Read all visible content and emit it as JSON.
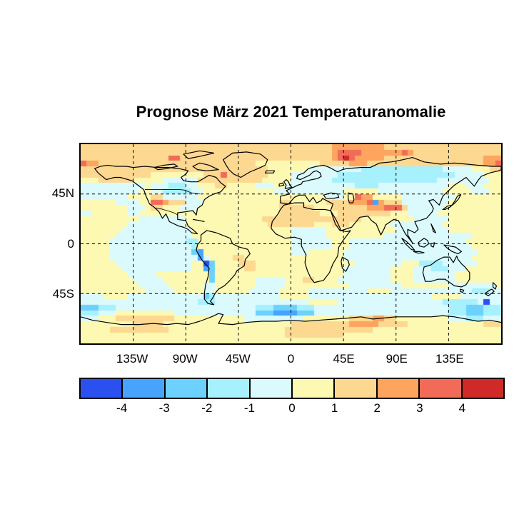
{
  "chart_data": {
    "type": "heatmap",
    "title": "Prognose März 2021 Temperaturanomalie",
    "map": {
      "projection": "equirectangular",
      "lon_range": [
        -180,
        180
      ],
      "lat_range": [
        -90,
        90
      ],
      "grid": "black dashed gridlines every 45 degrees"
    },
    "x_ticks": [
      {
        "label": "135W",
        "lon": -135
      },
      {
        "label": "90W",
        "lon": -90
      },
      {
        "label": "45W",
        "lon": -45
      },
      {
        "label": "0",
        "lon": 0
      },
      {
        "label": "45E",
        "lon": 45
      },
      {
        "label": "90E",
        "lon": 90
      },
      {
        "label": "135E",
        "lon": 135
      }
    ],
    "y_ticks": [
      {
        "label": "45N",
        "lat": 45
      },
      {
        "label": "0",
        "lat": 0
      },
      {
        "label": "45S",
        "lat": -45
      }
    ],
    "colorbar": {
      "boundaries": [
        -4,
        -3,
        -2,
        -1,
        0,
        1,
        2,
        3,
        4
      ],
      "tick_labels": [
        "-4",
        "-3",
        "-2",
        "-1",
        "0",
        "1",
        "2",
        "3",
        "4"
      ],
      "colors": [
        "#2a51f0",
        "#46a3fe",
        "#6dd1fd",
        "#a7f0fd",
        "#dafafd",
        "#fdf9b3",
        "#fdd890",
        "#fda45f",
        "#f26a58",
        "#d02a28"
      ],
      "segment_meaning": "anomaly bins: <-4, -4..-3, -3..-2, -2..-1, -1..0, 0..1, 1..2, 2..3, 3..4, >4"
    },
    "features": [
      "cold (blue) band across Siberia ~50-70N",
      "cool tongue in eastern tropical Pacific along South America (La Niña pattern)",
      "strong cold spots (<-3) along the Andes and deep cold patch in South Atlantic near 60S",
      "warm Arctic with red hot spots (>3) north of western Siberia and in Canadian Arctic",
      "warm spots (>3) in southwest USA, Caucasus/Central Asia and Himalaya region",
      "cool band across southern Canada / northern USA and over Europe",
      "warm patch on East Antarctic coast near 40-70E; mostly mild (0..2) elsewhere"
    ],
    "raster": {
      "rows": 36,
      "cols": 72,
      "cell_degrees": 5,
      "legend": "each digit = colorbar segment index 0-9 (0 coldest, 9 warmest); grid starts at 90N,180W; values estimated from the image",
      "rows_data": [
        "666666666666666666666666666666666666666666677777777766666666666666666666",
        "666666666666666666666666666666666666666666678888777777787666666666666666",
        "666666666666666886666666666666666666666666678987777766666666666666666777",
        "877666666666666666666666666666555555555556666677766666666666666666666778",
        "666666666666666666666666666666665555555444444444333333333333334444455566",
        "666666666666555555555666866666665555444444443333333333333333333344444555",
        "555666666555554444446666666666655555444444433333333333333333344444444455",
        "444444444445444333445556655555444554444444444443333444444444444555444555",
        "444444444455443333344555555555555444444444444555555444444444445555544455",
        "444444445555664444445555555555555555555555444558775555544444444455555555",
        "555555444455887666444555555555555566555555666677781766644444444555555555",
        "555555554445665554445555555555555566666655566666677788864444445555555555",
        "445555554455555555555555555555555566666665556666666665554444455555555555",
        "555555555544444444555555555555566666666666666666555555555444444555555555",
        "555555554444444444555555555555556666666655566655555554444444445555555555",
        "555555544444444444455555555555555555444444555555555555444444444555555555",
        "555555444444444444455555555555555555444444555555555544444444444444455555",
        "555554444444444444335555555555555555444444455544444444444444444444555555",
        "555554444444444444435555555555555555444444455544444444444444444444455555",
        "555554444444444444421555555555555555444555555444444444444444444444445555",
        "555554444444444444441455556655555555555555555444444444444444444444455555",
        "555555444444444444455025555666555555555555555554444444455533334444445555",
        "555555544444444444455125555566555555555555555444444445555444333444555555",
        "555555554444455555555525555555555555555555555444444445555444444455555555",
        "555555555444445555555525555555444445556655554444444445555444444455555555",
        "555555555544444555555445555555444445555555555544444444455555555444444445",
        "555555555554444455555445555554444455555444444444455554444444444444433344",
        "444455554444444444444234444444444455555444444444444444444444555554444444",
        "444444444444444444443334444444444444444555554444444444444444443333334 44",
        "222333444444444444444444444444333222233344444444444444444444444333222333",
        "333444555555555544444444444444222111122244444444444444444444444333222333",
        "444555666666666655555555555544444444445555555566667766555555555444333444",
        "555555555666665555555555555555555555666666666677777666665555555555555666",
        "555556666666666555555555555555555556666666666666665555555555555555555555",
        "555555555555555555555555555555555556666666666555555555555555555555555555",
        "555555555555555555555555555555555555555555555555555555555555555555555555"
      ]
    }
  }
}
